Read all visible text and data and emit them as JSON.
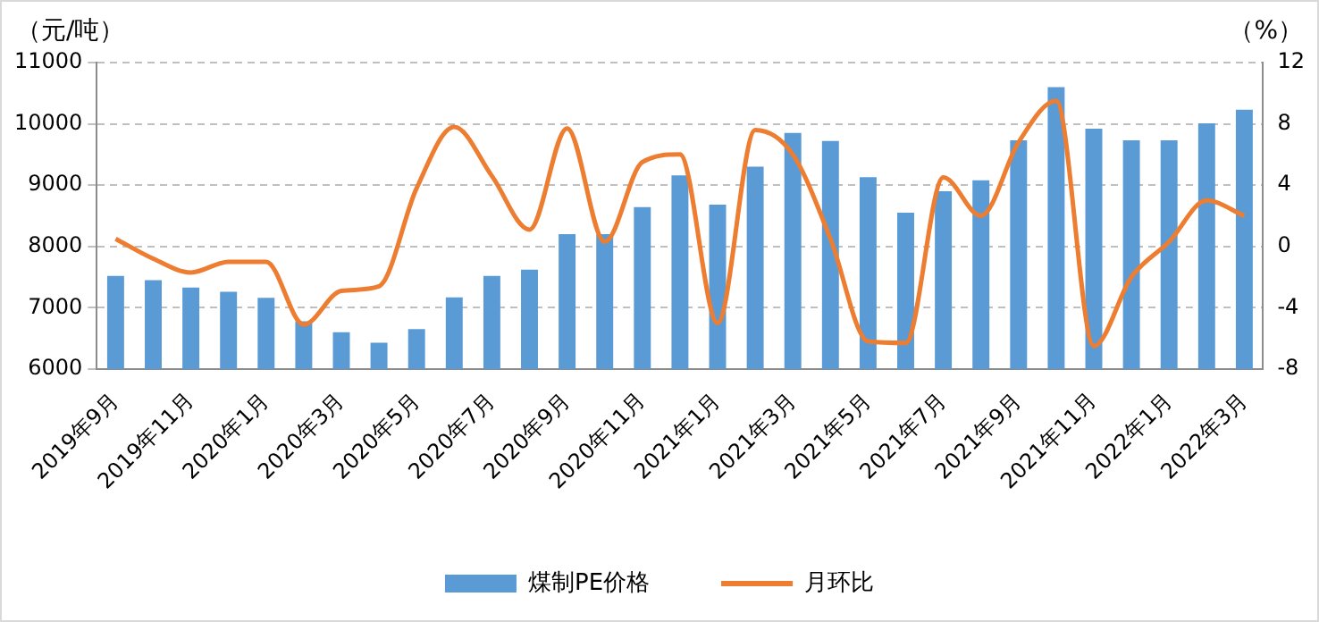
{
  "chart_data": {
    "type": "bar",
    "ylabel": "（元/吨）",
    "y2label": "（%）",
    "categories": [
      "2019年9月",
      null,
      "2019年11月",
      null,
      "2020年1月",
      null,
      "2020年3月",
      null,
      "2020年5月",
      null,
      "2020年7月",
      null,
      "2020年9月",
      null,
      "2020年11月",
      null,
      "2021年1月",
      null,
      "2021年3月",
      null,
      "2021年5月",
      null,
      "2021年7月",
      null,
      "2021年9月",
      null,
      "2021年11月",
      null,
      "2022年1月",
      null,
      "2022年3月"
    ],
    "series": [
      {
        "name": "煤制PE价格",
        "color": "#5b9bd5",
        "values": [
          7520,
          7450,
          7330,
          7260,
          7160,
          6780,
          6600,
          6430,
          6650,
          7170,
          7520,
          7620,
          8200,
          8200,
          8640,
          9160,
          8680,
          9300,
          9850,
          9720,
          9130,
          8550,
          8900,
          9080,
          9730,
          10600,
          9920,
          9730,
          9730,
          10010,
          10230
        ]
      },
      {
        "name": "月环比",
        "type": "line",
        "axis": "y2",
        "color": "#ed7d31",
        "values": [
          0.5,
          -0.8,
          -1.7,
          -1.0,
          -1.0,
          -5.1,
          -2.9,
          -2.6,
          3.8,
          7.8,
          4.6,
          1.1,
          7.7,
          0.3,
          5.5,
          6.0,
          -5.0,
          7.6,
          6.0,
          0.5,
          -6.2,
          -6.3,
          4.5,
          2.0,
          6.8,
          9.5,
          -6.5,
          -2.0,
          0.3,
          3.0,
          2.0
        ]
      }
    ],
    "ylim": [
      6000,
      11000
    ],
    "yticks": [
      6000,
      7000,
      8000,
      9000,
      10000,
      11000
    ],
    "y2lim": [
      -8,
      12
    ],
    "y2ticks": [
      -8,
      -4,
      0,
      4,
      8,
      12
    ],
    "grid": "y",
    "legend": "bottom",
    "marker": "none",
    "line_style": "solid"
  }
}
